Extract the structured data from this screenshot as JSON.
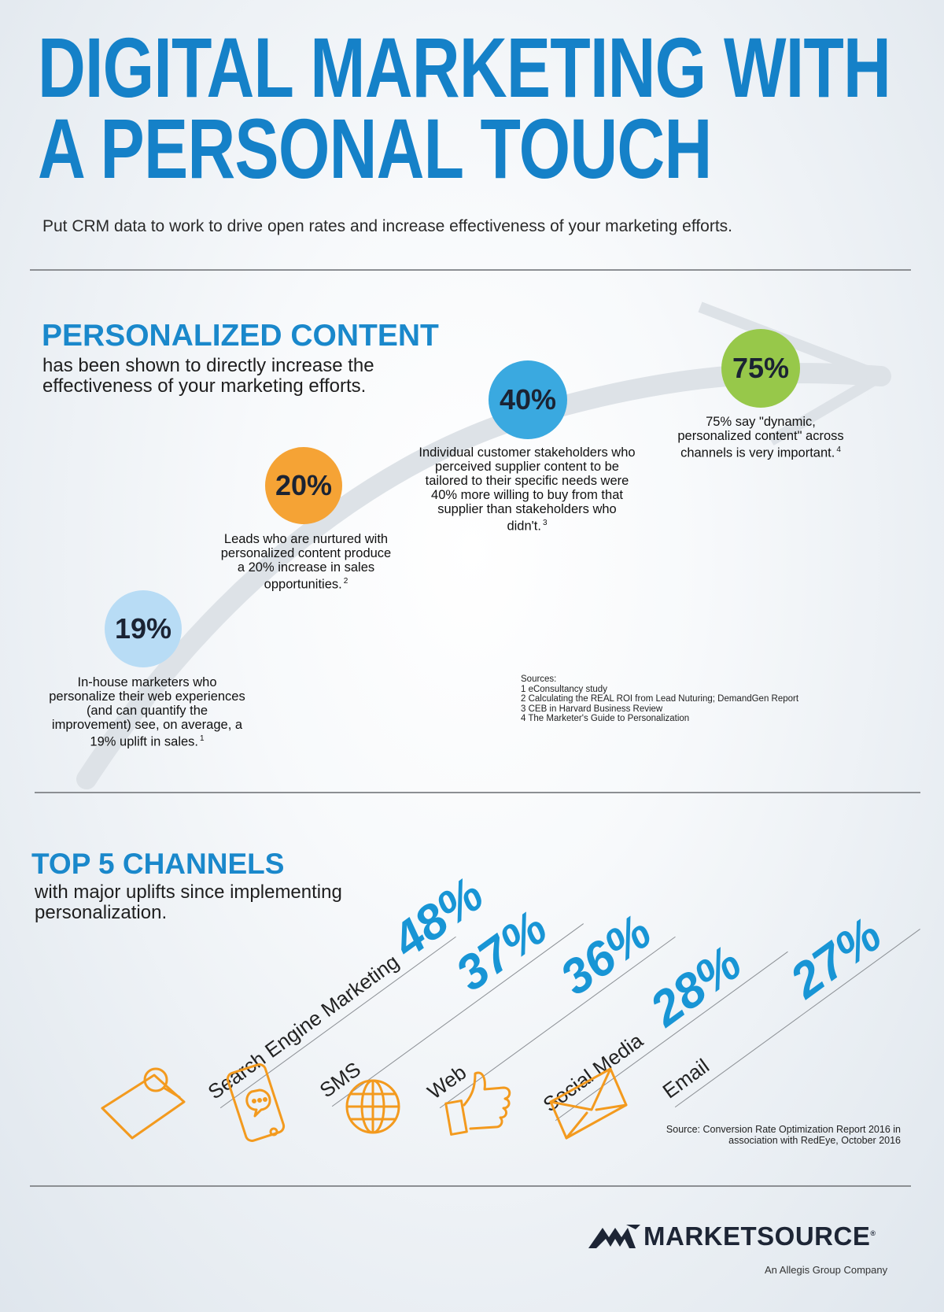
{
  "header": {
    "title_line1": "DIGITAL MARKETING WITH",
    "title_line2": "A PERSONAL TOUCH",
    "subtitle": "Put CRM data to work to drive open rates and increase effectiveness of your marketing efforts."
  },
  "personalized": {
    "heading": "PERSONALIZED CONTENT",
    "subheading": "has been shown to directly increase the effectiveness of your marketing efforts.",
    "stats": [
      {
        "value": "19%",
        "text": "In-house marketers who personalize their web experiences (and can quantify the improvement) see, on average, a 19% uplift in sales.",
        "ref": "1",
        "color": "#b8dcf5"
      },
      {
        "value": "20%",
        "text": "Leads who are nurtured with personalized content produce a 20% increase in sales opportunities.",
        "ref": "2",
        "color": "#f5a335"
      },
      {
        "value": "40%",
        "text": "Individual customer stakeholders who perceived supplier content to be tailored to their specific needs were 40% more willing to buy from that supplier than stakeholders who didn't.",
        "ref": "3",
        "color": "#3aa9e0"
      },
      {
        "value": "75%",
        "text": "75% say \"dynamic, personalized content\" across channels is very important.",
        "ref": "4",
        "color": "#97c84a"
      }
    ],
    "sources_title": "Sources:",
    "sources": [
      "1 eConsultancy study",
      "2 Calculating the REAL ROI from Lead Nuturing; DemandGen Report",
      "3 CEB in Harvard Business Review",
      "4 The Marketer's Guide to Personalization"
    ]
  },
  "channels": {
    "heading": "TOP 5 CHANNELS",
    "subheading": "with major uplifts since implementing personalization.",
    "items": [
      {
        "name": "Search Engine Marketing",
        "value": "48%",
        "icon": "search-laptop-icon"
      },
      {
        "name": "SMS",
        "value": "37%",
        "icon": "phone-message-icon"
      },
      {
        "name": "Web",
        "value": "36%",
        "icon": "globe-icon"
      },
      {
        "name": "Social Media",
        "value": "28%",
        "icon": "thumbs-up-icon"
      },
      {
        "name": "Email",
        "value": "27%",
        "icon": "envelope-icon"
      }
    ],
    "source": "Source: Conversion Rate Optimization Report 2016 in association with RedEye, October 2016"
  },
  "footer": {
    "brand": "MARKETSOURCE",
    "reg": "®",
    "tagline": "An Allegis Group Company"
  },
  "colors": {
    "title_blue": "#1581c8",
    "heading_blue": "#1a88cb",
    "channel_blue": "#1895d5",
    "icon_orange": "#f39a1e",
    "rule_gray": "#8c8f93",
    "brand_navy": "#1d2535"
  }
}
